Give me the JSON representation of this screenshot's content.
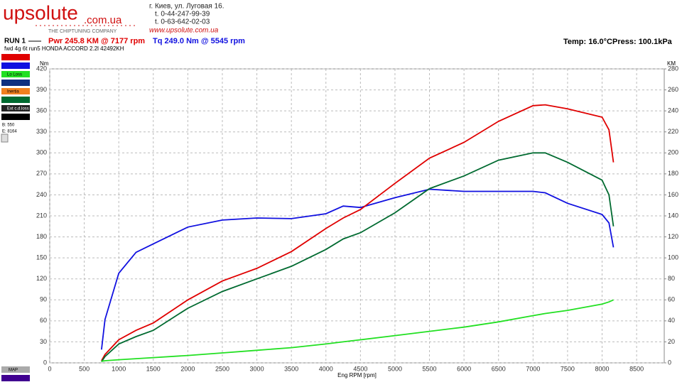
{
  "header": {
    "logo": "upsolute",
    "logo_domain": ".com.ua",
    "tagline": "THE CHIPTUNING COMPANY",
    "address": "г. Киев, ул. Луговая 16.",
    "phone1": "t. 0-44-247-99-39",
    "phone2": "t. 0-63-642-02-03",
    "website": "www.upsolute.com.ua"
  },
  "run": {
    "label": "RUN 1",
    "power": "Pwr  245.8 KM @ 7177 rpm",
    "torque": "Tq 249.0 Nm @ 5545 rpm",
    "temp": "Temp: 16.0°C",
    "press": "Press: 100.1kPa",
    "description": "fwd 4g 6t run5 HONDA ACCORD 2.2l 42492KH"
  },
  "side_panel": {
    "items": [
      "Lo Loss",
      "Inertia",
      "Ext c.d.loss"
    ],
    "begin": "B: 550",
    "end": "E: 8164",
    "map_button": "MAP"
  },
  "chart_data": {
    "type": "line",
    "x_label": "Eng RPM [rpm]",
    "y_label": "Nm",
    "y2_label": "KM",
    "x": [
      750,
      800,
      1000,
      1250,
      1500,
      2000,
      2500,
      3000,
      3500,
      4000,
      4250,
      4500,
      5000,
      5500,
      6000,
      6500,
      7000,
      7177,
      7500,
      8000,
      8100,
      8164
    ],
    "series": [
      {
        "color": "#1010e0",
        "axis": "y",
        "values": [
          19,
          62,
          128,
          158,
          170,
          194,
          204,
          207,
          206,
          213,
          224,
          222,
          236,
          248,
          245,
          245,
          245,
          243,
          228,
          212,
          200,
          165
        ]
      },
      {
        "color": "#e00000",
        "axis": "y2",
        "values": [
          2,
          8,
          22,
          31,
          38,
          60,
          78,
          90,
          106,
          128,
          138,
          146,
          171,
          195,
          210,
          230,
          245,
          245.8,
          242,
          234,
          222,
          191
        ]
      },
      {
        "color": "#006a30",
        "axis": "y2",
        "values": [
          1,
          6,
          18,
          25,
          31,
          52,
          68,
          80,
          92,
          108,
          118,
          124,
          143,
          166,
          178,
          193,
          200,
          200,
          191,
          174,
          160,
          130
        ]
      },
      {
        "color": "#22e022",
        "axis": "y2",
        "values": [
          1.5,
          2,
          3,
          4,
          5,
          7,
          9.5,
          12,
          14.5,
          18,
          20,
          22,
          26,
          30,
          34,
          39,
          45,
          47,
          50,
          56,
          58,
          60
        ]
      }
    ],
    "xlim": [
      0,
      8900
    ],
    "xticks": [
      0,
      500,
      1000,
      1500,
      2000,
      2500,
      3000,
      3500,
      4000,
      4500,
      5000,
      5500,
      6000,
      6500,
      7000,
      7500,
      8000,
      8500
    ],
    "ylim": [
      0,
      420
    ],
    "yticks": [
      0,
      30,
      60,
      90,
      120,
      150,
      180,
      210,
      240,
      270,
      300,
      330,
      360,
      390,
      420
    ],
    "y2lim": [
      0,
      280
    ],
    "y2ticks": [
      0,
      20,
      40,
      60,
      80,
      100,
      120,
      140,
      160,
      180,
      200,
      220,
      240,
      260,
      280
    ],
    "grid": true
  }
}
